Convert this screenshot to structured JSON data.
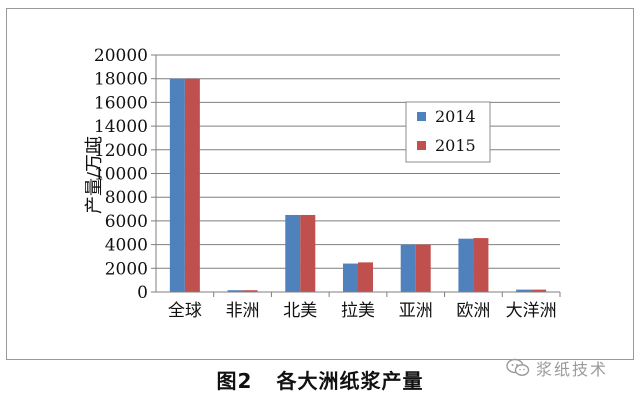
{
  "chart_data": {
    "type": "bar",
    "categories": [
      "全球",
      "非洲",
      "北美",
      "拉美",
      "亚洲",
      "欧洲",
      "大洋洲"
    ],
    "series": [
      {
        "name": "2014",
        "values": [
          18000,
          150,
          6500,
          2400,
          4000,
          4500,
          200
        ],
        "color": "#4f81bd"
      },
      {
        "name": "2015",
        "values": [
          18000,
          150,
          6500,
          2500,
          4000,
          4550,
          200
        ],
        "color": "#c0504d"
      }
    ],
    "ylabel": "产量/万吨",
    "xlabel": "",
    "ylim": [
      0,
      20000
    ],
    "yticks": [
      0,
      2000,
      4000,
      6000,
      8000,
      10000,
      12000,
      14000,
      16000,
      18000,
      20000
    ],
    "grid": true,
    "legend_position": "inside-right"
  },
  "caption": {
    "label": "图2",
    "title": "各大洲纸浆产量"
  },
  "watermark": {
    "text": "浆纸技术",
    "icon": "wechat-icon"
  }
}
